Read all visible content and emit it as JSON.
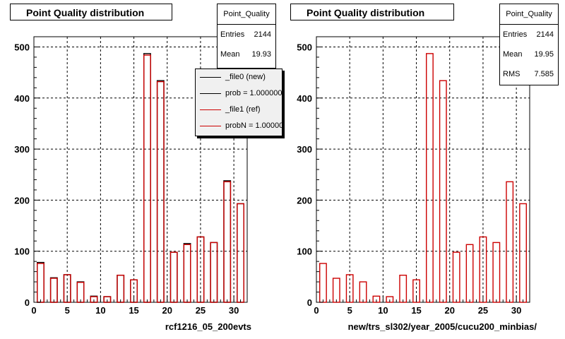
{
  "chart_data": [
    {
      "type": "bar",
      "title": "Point Quality distribution",
      "xlabel": "rcf1216_05_200evts",
      "xlim": [
        0,
        32
      ],
      "ylim": [
        0,
        520
      ],
      "xticks": [
        0,
        5,
        10,
        15,
        20,
        25,
        30
      ],
      "yticks": [
        0,
        100,
        200,
        300,
        400,
        500
      ],
      "grid": true,
      "bin_width": 1,
      "x": [
        1,
        3,
        5,
        7,
        9,
        11,
        13,
        15,
        17,
        19,
        21,
        23,
        25,
        27,
        29,
        31
      ],
      "series": [
        {
          "name": "_file0 (new)",
          "color": "#000000",
          "values": [
            78,
            48,
            54,
            40,
            12,
            11,
            53,
            44,
            487,
            434,
            98,
            115,
            128,
            117,
            238,
            193
          ]
        },
        {
          "name": "_file1 (ref)",
          "color": "#cc0000",
          "values": [
            76,
            47,
            54,
            39,
            11,
            11,
            53,
            44,
            484,
            432,
            98,
            113,
            128,
            117,
            236,
            193
          ]
        }
      ],
      "legend": {
        "position": "top-right",
        "entries": [
          {
            "label": "_file0 (new)",
            "color": "#000000"
          },
          {
            "label": "prob = 1.000000",
            "color": "#000000"
          },
          {
            "label": "_file1 (ref)",
            "color": "#cc0000"
          },
          {
            "label": "probN = 1.000000",
            "color": "#cc0000"
          }
        ]
      },
      "stats": {
        "title": "Point_Quality",
        "entries": "2144",
        "mean": "19.93"
      }
    },
    {
      "type": "bar",
      "title": "Point Quality distribution",
      "xlabel": "new/trs_sl302/year_2005/cucu200_minbias/",
      "xlim": [
        0,
        32
      ],
      "ylim": [
        0,
        520
      ],
      "xticks": [
        0,
        5,
        10,
        15,
        20,
        25,
        30
      ],
      "yticks": [
        0,
        100,
        200,
        300,
        400,
        500
      ],
      "grid": true,
      "bin_width": 1,
      "x": [
        1,
        3,
        5,
        7,
        9,
        11,
        13,
        15,
        17,
        19,
        21,
        23,
        25,
        27,
        29,
        31
      ],
      "series": [
        {
          "name": "",
          "color": "#cc0000",
          "values": [
            76,
            47,
            54,
            40,
            12,
            11,
            53,
            44,
            487,
            434,
            98,
            113,
            128,
            117,
            236,
            193
          ]
        }
      ],
      "stats": {
        "title": "Point_Quality",
        "entries": "2144",
        "mean": "19.95",
        "rms": "7.585"
      }
    }
  ],
  "labels": {
    "entries": "Entries",
    "mean": "Mean",
    "rms": "RMS"
  }
}
